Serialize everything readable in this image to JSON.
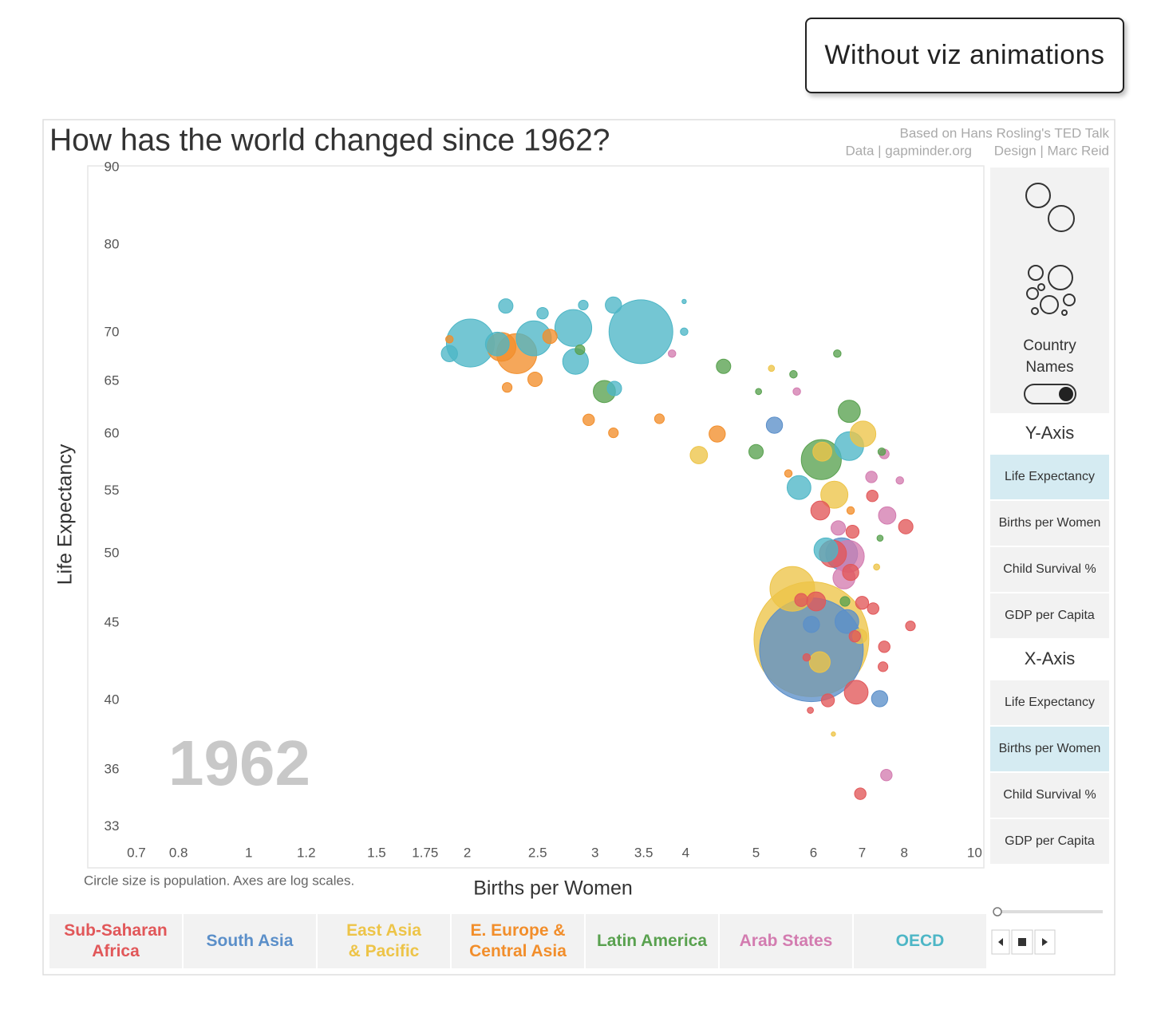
{
  "button": "Without viz animations",
  "attribution": [
    "Based on Hans Rosling's TED Talk",
    "Data | gapminder.org",
    "Design | Marc Reid"
  ],
  "controls": {
    "country_names": {
      "label": "Country Names",
      "on": true
    },
    "y_axis": {
      "title": "Y-Axis",
      "options": [
        "Life Expectancy",
        "Births per Women",
        "Child Survival %",
        "GDP per Capita"
      ],
      "selected": 0
    },
    "x_axis": {
      "title": "X-Axis",
      "options": [
        "Life Expectancy",
        "Births per Women",
        "Child Survival %",
        "GDP per Capita"
      ],
      "selected": 1
    }
  },
  "chart_data": {
    "type": "scatter",
    "title": "How has the world changed since 1962?",
    "annotation": "1962",
    "caption": "Circle size is population.  Axes are log scales.",
    "x_label": "Births per Women",
    "y_label": "Life Expectancy",
    "xscale": "log",
    "yscale": "log",
    "xlim": [
      0.6,
      10.3
    ],
    "ylim": [
      31,
      90
    ],
    "xticks": [
      0.7,
      0.8,
      1,
      1.2,
      1.5,
      1.75,
      2,
      2.5,
      3,
      3.5,
      4,
      5,
      6,
      7,
      8,
      10
    ],
    "yticks": [
      33,
      36,
      40,
      45,
      50,
      55,
      60,
      65,
      70,
      80,
      90
    ],
    "series": [
      {
        "name": "Sub-Saharan Africa",
        "color": "#e15759",
        "x": [
          6.38,
          6.87,
          6.13,
          6.05,
          8.04,
          6.75,
          6.96,
          8.16,
          7.25,
          7.51,
          6.28,
          5.77,
          7.48,
          7.0,
          7.23,
          6.79,
          5.87,
          6.84,
          5.94
        ],
        "values": [
          50.0,
          40.5,
          53.4,
          46.5,
          52.1,
          48.6,
          34.7,
          44.8,
          46.0,
          43.4,
          40.0,
          46.6,
          42.1,
          46.4,
          54.6,
          51.7,
          42.7,
          44.1,
          39.4
        ],
        "sizes": [
          39,
          30,
          19,
          19,
          11,
          14,
          7,
          5,
          7,
          7,
          9,
          9,
          5,
          9,
          7,
          9,
          3,
          7,
          2
        ]
      },
      {
        "name": "South Asia",
        "color": "#5b8fc9",
        "x": [
          5.96,
          5.3,
          7.4,
          6.67,
          5.96,
          6.56
        ],
        "values": [
          43.2,
          60.8,
          40.1,
          45.1,
          44.9,
          50.0
        ],
        "sizes": [
          571,
          14,
          14,
          30,
          14,
          54
        ]
      },
      {
        "name": "East Asia & Pacific",
        "color": "#edc448",
        "x": [
          5.96,
          5.61,
          6.41,
          7.02,
          4.17,
          6.12,
          6.17,
          6.95,
          5.25,
          6.39,
          7.33
        ],
        "values": [
          43.9,
          47.4,
          54.7,
          60.0,
          58.1,
          42.4,
          58.4,
          44.1,
          66.3,
          38.0,
          49.0
        ],
        "sizes": [
          700,
          106,
          39,
          35,
          16,
          23,
          19,
          11,
          2,
          1,
          2
        ]
      },
      {
        "name": "E. Europe & Central Asia",
        "color": "#f28e2b",
        "x": [
          2.34,
          2.23,
          2.48,
          2.94,
          3.18,
          3.68,
          4.42,
          2.27,
          2.6,
          1.89,
          5.54,
          6.75
        ],
        "values": [
          67.8,
          68.5,
          65.2,
          61.3,
          60.1,
          61.4,
          60.0,
          64.4,
          69.6,
          69.3,
          56.5,
          53.4
        ],
        "sizes": [
          85,
          44,
          11,
          7,
          5,
          5,
          14,
          5,
          11,
          3,
          3,
          3
        ]
      },
      {
        "name": "Latin America",
        "color": "#59a14f",
        "x": [
          6.15,
          3.09,
          6.72,
          4.51,
          5.0,
          6.47,
          5.63,
          5.04,
          7.45,
          6.63,
          7.41,
          2.86
        ],
        "values": [
          57.7,
          64.0,
          62.1,
          66.5,
          58.4,
          67.8,
          65.7,
          64.0,
          58.4,
          46.5,
          51.2,
          68.2
        ],
        "sizes": [
          85,
          26,
          26,
          11,
          11,
          3,
          3,
          2,
          3,
          5,
          2,
          5
        ]
      },
      {
        "name": "Arab States",
        "color": "#d37cb0",
        "x": [
          6.7,
          7.58,
          6.61,
          7.21,
          7.56,
          6.49,
          7.89,
          5.69,
          3.83,
          7.51
        ],
        "values": [
          49.8,
          53.0,
          48.2,
          56.2,
          35.7,
          52.0,
          55.9,
          64.0,
          67.8,
          58.2
        ],
        "sizes": [
          54,
          16,
          26,
          7,
          7,
          11,
          3,
          3,
          3,
          5
        ]
      },
      {
        "name": "OECD",
        "color": "#4db6c6",
        "x": [
          3.47,
          2.02,
          2.8,
          2.47,
          2.82,
          2.2,
          6.72,
          5.73,
          6.24,
          3.18,
          2.26,
          1.89,
          3.98,
          2.89,
          2.54,
          3.19,
          3.98
        ],
        "values": [
          70.1,
          68.9,
          70.5,
          69.4,
          67.0,
          68.8,
          58.9,
          55.3,
          50.3,
          73.0,
          72.9,
          67.8,
          70.1,
          73.0,
          72.1,
          64.3,
          73.4
        ],
        "sizes": [
          216,
          122,
          72,
          65,
          35,
          30,
          44,
          30,
          30,
          14,
          11,
          14,
          3,
          5,
          7,
          11,
          1
        ]
      }
    ]
  }
}
